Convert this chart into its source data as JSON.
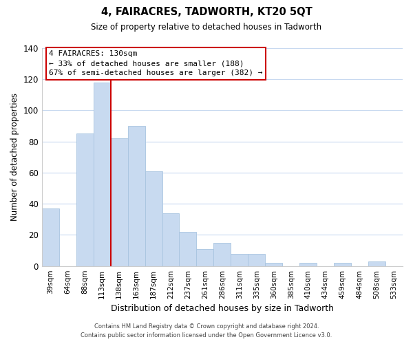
{
  "title": "4, FAIRACRES, TADWORTH, KT20 5QT",
  "subtitle": "Size of property relative to detached houses in Tadworth",
  "xlabel": "Distribution of detached houses by size in Tadworth",
  "ylabel": "Number of detached properties",
  "bar_color": "#c8daf0",
  "bar_edge_color": "#a8c4e0",
  "categories": [
    "39sqm",
    "64sqm",
    "88sqm",
    "113sqm",
    "138sqm",
    "163sqm",
    "187sqm",
    "212sqm",
    "237sqm",
    "261sqm",
    "286sqm",
    "311sqm",
    "335sqm",
    "360sqm",
    "385sqm",
    "410sqm",
    "434sqm",
    "459sqm",
    "484sqm",
    "508sqm",
    "533sqm"
  ],
  "values": [
    37,
    0,
    85,
    118,
    82,
    90,
    61,
    34,
    22,
    11,
    15,
    8,
    8,
    2,
    0,
    2,
    0,
    2,
    0,
    3,
    0
  ],
  "vline_x_idx": 3.5,
  "vline_color": "#cc0000",
  "ylim": [
    0,
    140
  ],
  "yticks": [
    0,
    20,
    40,
    60,
    80,
    100,
    120,
    140
  ],
  "annotation_title": "4 FAIRACRES: 130sqm",
  "annotation_line1": "← 33% of detached houses are smaller (188)",
  "annotation_line2": "67% of semi-detached houses are larger (382) →",
  "annotation_box_color": "#ffffff",
  "annotation_box_edge": "#cc0000",
  "footer1": "Contains HM Land Registry data © Crown copyright and database right 2024.",
  "footer2": "Contains public sector information licensed under the Open Government Licence v3.0.",
  "background_color": "#ffffff",
  "grid_color": "#c8d9f0"
}
